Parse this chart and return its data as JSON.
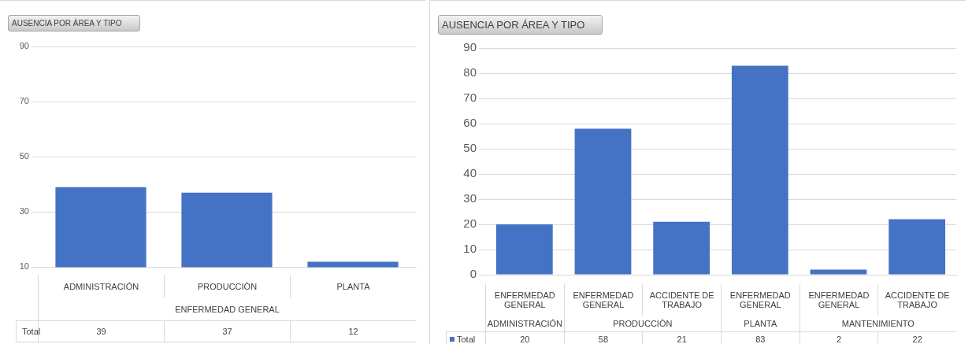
{
  "chart_data": [
    {
      "type": "bar",
      "title": "AUSENCIA POR ÁREA Y TIPO",
      "categories": [
        "ADMINISTRACIÓN",
        "PRODUCCIÒN",
        "PLANTA"
      ],
      "annotations": [
        "ENFERMEDAD GENERAL"
      ],
      "series": [
        {
          "name": "Total",
          "color": "#4472c4",
          "values": [
            39,
            37,
            12
          ]
        }
      ],
      "ylim": [
        10,
        90
      ],
      "yticks": [
        10,
        30,
        50,
        70,
        90
      ],
      "grid": "y",
      "legend": "bottom",
      "data_labels": true
    },
    {
      "type": "bar",
      "title": "AUSENCIA POR ÁREA Y TIPO",
      "categories": [
        "ENFERMEDAD GENERAL",
        "ENFERMEDAD GENERAL",
        "ACCIDENTE DE TRABAJO",
        "ENFERMEDAD GENERAL",
        "ENFERMEDAD GENERAL",
        "ACCIDENTE DE TRABAJO"
      ],
      "annotations": [
        "ADMINISTRACIÓN",
        "PRODUCCIÒN",
        "PLANTA",
        "MANTENIMIENTO"
      ],
      "series": [
        {
          "name": "Total",
          "color": "#4472c4",
          "values": [
            20,
            58,
            21,
            83,
            2,
            22
          ]
        }
      ],
      "ylim": [
        0,
        90
      ],
      "yticks": [
        0,
        10,
        20,
        30,
        40,
        50,
        60,
        70,
        80,
        90
      ],
      "grid": "y",
      "legend": "bottom",
      "data_labels": true
    }
  ]
}
